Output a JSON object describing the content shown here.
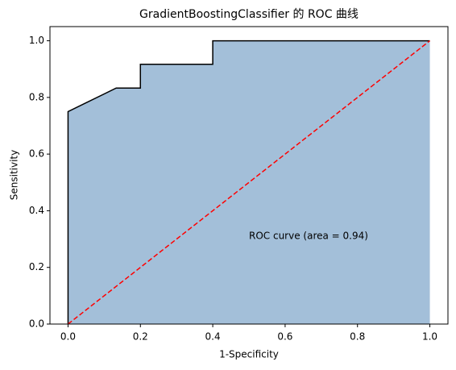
{
  "chart_data": {
    "type": "line",
    "title": "GradientBoostingClassifier 的 ROC 曲线",
    "xlabel": "1-Specificity",
    "ylabel": "Sensitivity",
    "annotation": "ROC curve (area = 0.94)",
    "xlim": [
      -0.05,
      1.05
    ],
    "ylim": [
      0,
      1.05
    ],
    "xticks": [
      {
        "value": 0,
        "label": "0.0"
      },
      0.2,
      0.4,
      0.6,
      0.8,
      {
        "value": 1,
        "label": "1.0"
      }
    ],
    "yticks": [
      {
        "value": 0,
        "label": "0.0"
      },
      0.2,
      0.4,
      0.6,
      0.8,
      {
        "value": 1,
        "label": "1.0"
      }
    ],
    "series": [
      {
        "x": [
          0,
          0,
          0.133,
          0.2,
          0.2,
          0.4,
          0.4,
          1
        ],
        "values": [
          0,
          0.75,
          0.833,
          0.833,
          0.917,
          0.917,
          1,
          1
        ],
        "color": "#000000",
        "fill": "#a3bfd9"
      },
      {
        "x": [
          0,
          1
        ],
        "values": [
          0,
          1
        ],
        "color": "#ff0000",
        "dashed": true
      }
    ]
  }
}
